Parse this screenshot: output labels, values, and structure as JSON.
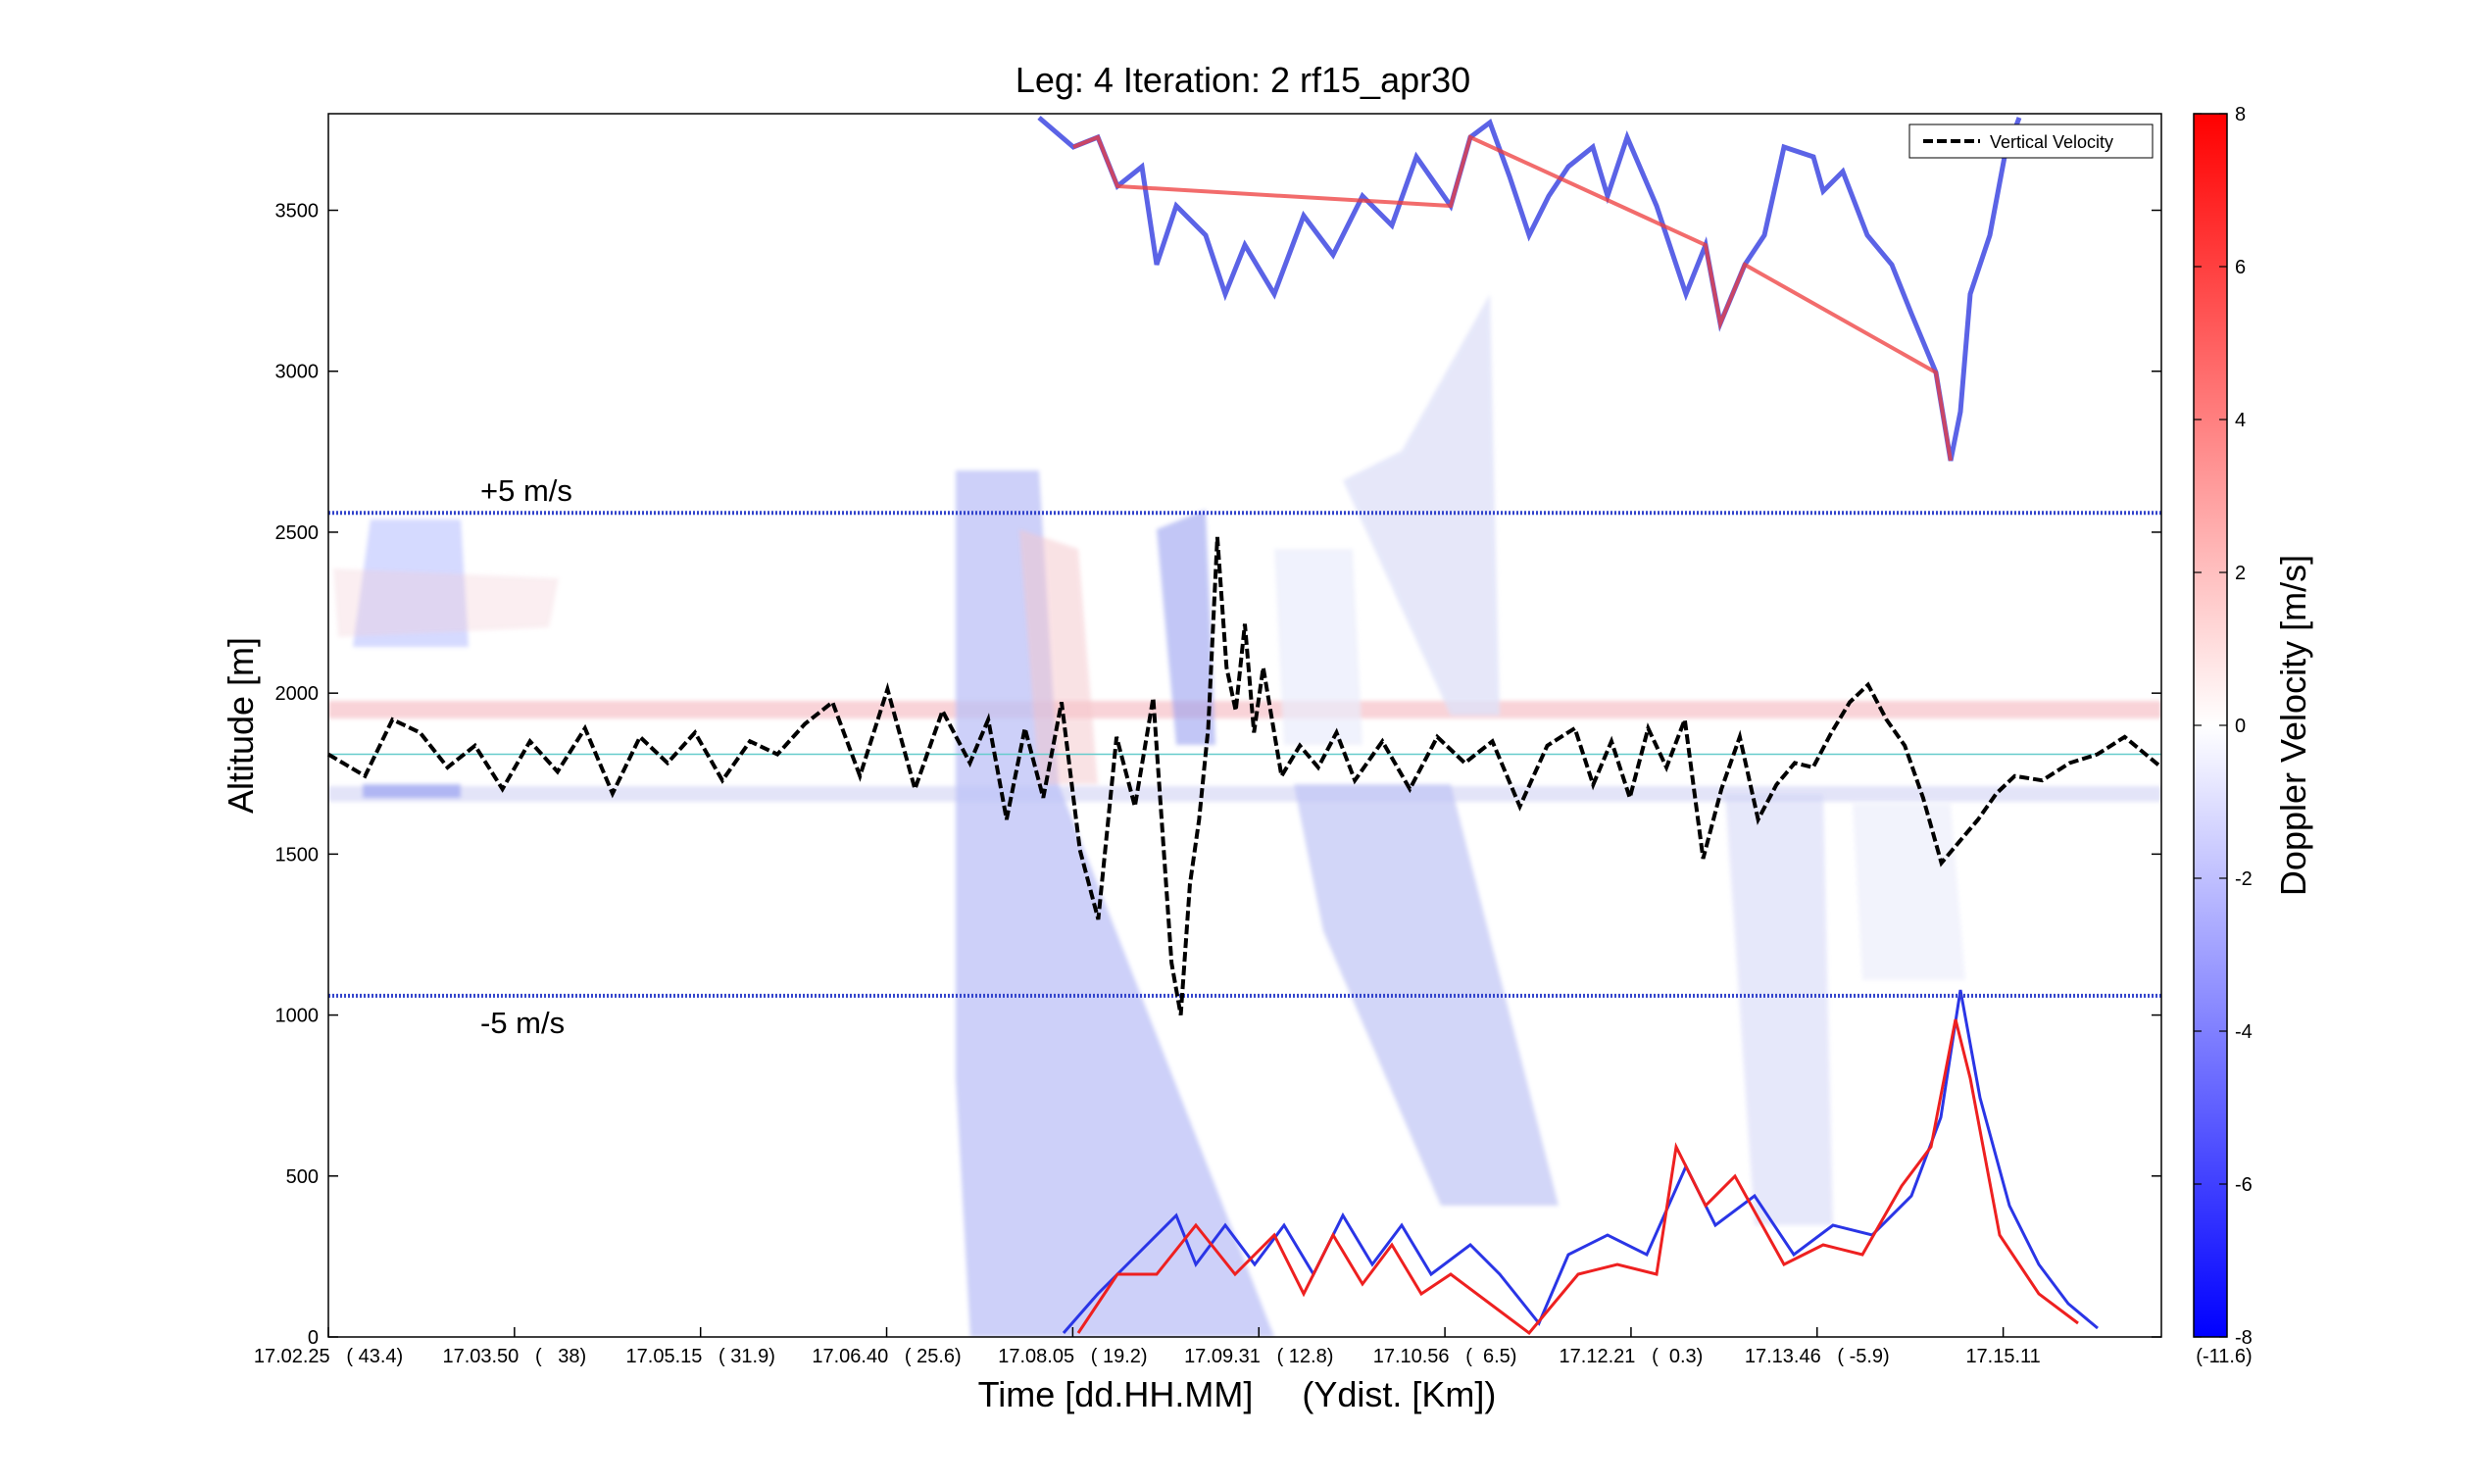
{
  "chart_data": {
    "type": "heatmap",
    "title": "Leg: 4  Iteration: 2  rf15_apr30",
    "xlabel": "Time [dd.HH.MM]     (Ydist. [Km])",
    "ylabel": "Altitude [m]",
    "x_tick_labels": [
      "17.02.25   ( 43.4)",
      "17.03.50   (   38)",
      "17.05.15   ( 31.9)",
      "17.06.40   ( 25.6)",
      "17.08.05   ( 19.2)",
      "17.09.31   ( 12.8)",
      "17.10.56   (  6.5)",
      "17.12.21   (  0.3)",
      "17.13.46   ( -5.9)",
      "17.15.11",
      "(-11.6)"
    ],
    "y_ticks": [
      0,
      500,
      1000,
      1500,
      2000,
      2500,
      3000,
      3500
    ],
    "ylim": [
      0,
      3800
    ],
    "colorbar": {
      "label": "Doppler Velocity [m/s]",
      "range": [
        -8,
        8
      ],
      "ticks": [
        -8,
        -6,
        -4,
        -2,
        0,
        2,
        4,
        6,
        8
      ],
      "colors": {
        "low": "#0000ff",
        "mid": "#ffffff",
        "high": "#ff0000"
      }
    },
    "legend": {
      "placement": "top-right",
      "entries": [
        "Vertical Velocity"
      ]
    },
    "annotations": {
      "plus5_label": "+5 m/s",
      "plus5_altitude": 2560,
      "minus5_label": "-5 m/s",
      "minus5_altitude": 1060,
      "flight_altitude": 1810,
      "zero_line_color": "#66cccc",
      "reference_line_color": "#3344cc"
    },
    "series": [
      {
        "name": "Vertical Velocity",
        "color": "#000000",
        "x_fraction": [
          0.0,
          0.02,
          0.035,
          0.05,
          0.065,
          0.08,
          0.095,
          0.11,
          0.125,
          0.14,
          0.155,
          0.17,
          0.185,
          0.2,
          0.215,
          0.23,
          0.245,
          0.26,
          0.275,
          0.29,
          0.305,
          0.32,
          0.335,
          0.35,
          0.36,
          0.37,
          0.38,
          0.39,
          0.4,
          0.41,
          0.42,
          0.43,
          0.44,
          0.45,
          0.46,
          0.465,
          0.47,
          0.475,
          0.48,
          0.485,
          0.49,
          0.495,
          0.5,
          0.505,
          0.51,
          0.52,
          0.53,
          0.54,
          0.55,
          0.56,
          0.575,
          0.59,
          0.605,
          0.62,
          0.635,
          0.65,
          0.665,
          0.68,
          0.69,
          0.7,
          0.71,
          0.72,
          0.73,
          0.74,
          0.75,
          0.76,
          0.77,
          0.78,
          0.79,
          0.8,
          0.81,
          0.82,
          0.83,
          0.84,
          0.85,
          0.86,
          0.87,
          0.88,
          0.89,
          0.9,
          0.91,
          0.92,
          0.935,
          0.95,
          0.965,
          0.98,
          1.0
        ],
        "y_ms": [
          0.0,
          -0.5,
          0.8,
          0.5,
          -0.3,
          0.2,
          -0.8,
          0.3,
          -0.4,
          0.6,
          -0.9,
          0.4,
          -0.2,
          0.5,
          -0.6,
          0.3,
          0.0,
          0.7,
          1.2,
          -0.5,
          1.5,
          -0.8,
          1.0,
          -0.2,
          0.8,
          -1.5,
          0.6,
          -1.0,
          1.2,
          -2.2,
          -3.8,
          0.4,
          -1.2,
          1.3,
          -4.8,
          -6.0,
          -3.0,
          -1.5,
          0.6,
          5.0,
          2.0,
          1.0,
          3.0,
          0.5,
          2.0,
          -0.5,
          0.2,
          -0.3,
          0.5,
          -0.6,
          0.3,
          -0.8,
          0.4,
          -0.2,
          0.3,
          -1.2,
          0.2,
          0.6,
          -0.7,
          0.3,
          -1.0,
          0.6,
          -0.3,
          0.8,
          -2.4,
          -0.8,
          0.4,
          -1.5,
          -0.7,
          -0.2,
          -0.3,
          0.5,
          1.2,
          1.6,
          0.8,
          0.2,
          -1.0,
          -2.5,
          -2.0,
          -1.5,
          -0.9,
          -0.5,
          -0.6,
          -0.2,
          0.0,
          0.4,
          -0.3
        ]
      }
    ]
  }
}
